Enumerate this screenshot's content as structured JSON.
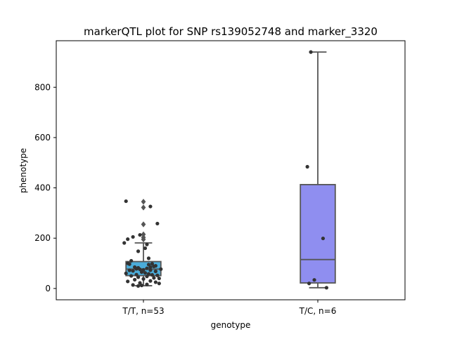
{
  "chart_data": {
    "type": "box",
    "title": "markerQTL plot for SNP rs139052748 and marker_3320",
    "xlabel": "genotype",
    "ylabel": "phenotype",
    "ylim": [
      -45,
      985
    ],
    "yticks": [
      0,
      200,
      400,
      600,
      800
    ],
    "grid": false,
    "categories": [
      "T/T, n=53",
      "T/C, n=6"
    ],
    "colors": {
      "T/T, n=53": "#4bacd9",
      "T/C, n=6": "#8f8ef0",
      "edge": "#555555",
      "points": "#333333"
    },
    "boxes": [
      {
        "category": "T/T, n=53",
        "q1": 51,
        "median": 77,
        "q3": 107,
        "whisker_low": 11,
        "whisker_high": 181,
        "outliers": [
          345,
          322,
          255,
          215,
          203,
          195
        ],
        "points": [
          [
            -0.1,
            347
          ],
          [
            0.04,
            326
          ],
          [
            0.08,
            258
          ],
          [
            -0.02,
            213
          ],
          [
            -0.06,
            205
          ],
          [
            -0.09,
            196
          ],
          [
            -0.11,
            181
          ],
          [
            0.02,
            175
          ],
          [
            -0.03,
            148
          ],
          [
            0.01,
            160
          ],
          [
            0.03,
            120
          ],
          [
            -0.07,
            110
          ],
          [
            -0.09,
            100
          ],
          [
            -0.08,
            97
          ],
          [
            0.05,
            98
          ],
          [
            0.03,
            95
          ],
          [
            0.07,
            90
          ],
          [
            0.06,
            88
          ],
          [
            -0.05,
            85
          ],
          [
            -0.03,
            82
          ],
          [
            0.02,
            80
          ],
          [
            -0.04,
            78
          ],
          [
            -0.02,
            76
          ],
          [
            0.0,
            74
          ],
          [
            0.04,
            73
          ],
          [
            -0.08,
            72
          ],
          [
            -0.06,
            70
          ],
          [
            0.07,
            68
          ],
          [
            0.1,
            77
          ],
          [
            -0.1,
            60
          ],
          [
            -0.01,
            65
          ],
          [
            0.01,
            62
          ],
          [
            0.03,
            58
          ],
          [
            -0.04,
            55
          ],
          [
            0.05,
            54
          ],
          [
            0.08,
            52
          ],
          [
            -0.07,
            50
          ],
          [
            0.02,
            48
          ],
          [
            -0.03,
            45
          ],
          [
            0.06,
            42
          ],
          [
            0.09,
            40
          ],
          [
            0.0,
            38
          ],
          [
            -0.05,
            35
          ],
          [
            0.04,
            30
          ],
          [
            -0.09,
            28
          ],
          [
            0.07,
            25
          ],
          [
            -0.02,
            22
          ],
          [
            0.09,
            20
          ],
          [
            0.02,
            16
          ],
          [
            -0.06,
            14
          ],
          [
            -0.01,
            12
          ],
          [
            -0.03,
            10
          ],
          [
            0.04,
            85
          ]
        ]
      },
      {
        "category": "T/C, n=6",
        "q1": 22,
        "median": 115,
        "q3": 413,
        "whisker_low": 3,
        "whisker_high": 940,
        "outliers": [],
        "points": [
          [
            -0.04,
            940
          ],
          [
            -0.06,
            484
          ],
          [
            0.03,
            199
          ],
          [
            -0.02,
            34
          ],
          [
            -0.05,
            20
          ],
          [
            0.05,
            3
          ]
        ]
      }
    ]
  }
}
